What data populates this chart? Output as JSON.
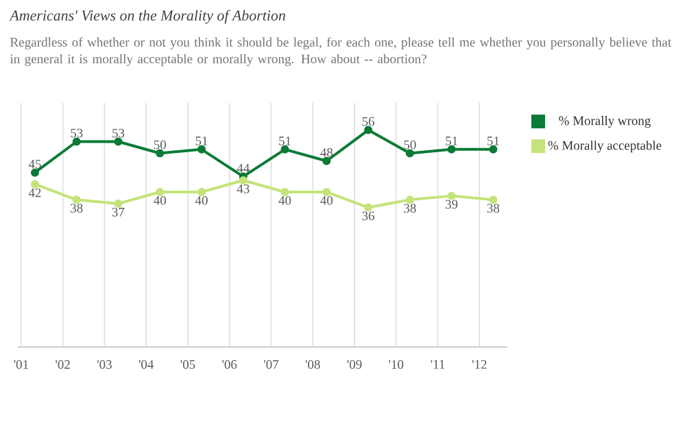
{
  "chart_data": {
    "type": "line",
    "title": "Americans' Views on the Morality of Abortion",
    "subtitle": "Regardless of whether or not you think it should be legal, for each one, please tell me whether you personally believe that in general it is morally acceptable or morally wrong. How about -- abortion?",
    "x": [
      "2001-05",
      "2002-05",
      "2003-05",
      "2004-05",
      "2005-05",
      "2006-05",
      "2007-05",
      "2008-05",
      "2009-05",
      "2010-05",
      "2011-05",
      "2012-05"
    ],
    "series": [
      {
        "name": "% Morally wrong",
        "color": "#0b7a36",
        "values": [
          45,
          53,
          53,
          50,
          51,
          44,
          51,
          48,
          56,
          50,
          51,
          51
        ]
      },
      {
        "name": "% Morally acceptable",
        "color": "#c4e37a",
        "values": [
          42,
          38,
          37,
          40,
          40,
          43,
          40,
          40,
          36,
          38,
          39,
          38
        ]
      }
    ],
    "xlim": [
      "2000-12",
      "2012-09"
    ],
    "xticks": [
      {
        "value": "2001",
        "label": "'01"
      },
      {
        "value": "2002",
        "label": "'02"
      },
      {
        "value": "2003",
        "label": "'03"
      },
      {
        "value": "2004",
        "label": "'04"
      },
      {
        "value": "2005",
        "label": "'05"
      },
      {
        "value": "2006",
        "label": "'06"
      },
      {
        "value": "2007",
        "label": "'07"
      },
      {
        "value": "2008",
        "label": "'08"
      },
      {
        "value": "2009",
        "label": "'09"
      },
      {
        "value": "2010",
        "label": "'10"
      },
      {
        "value": "2011",
        "label": "'11"
      },
      {
        "value": "2012",
        "label": "'12"
      }
    ],
    "ylim": [
      0,
      63
    ],
    "tick_labels": "x",
    "grid": "x",
    "legend": "top right",
    "marker": "circle",
    "line_style": "solid",
    "data_labels": true
  }
}
